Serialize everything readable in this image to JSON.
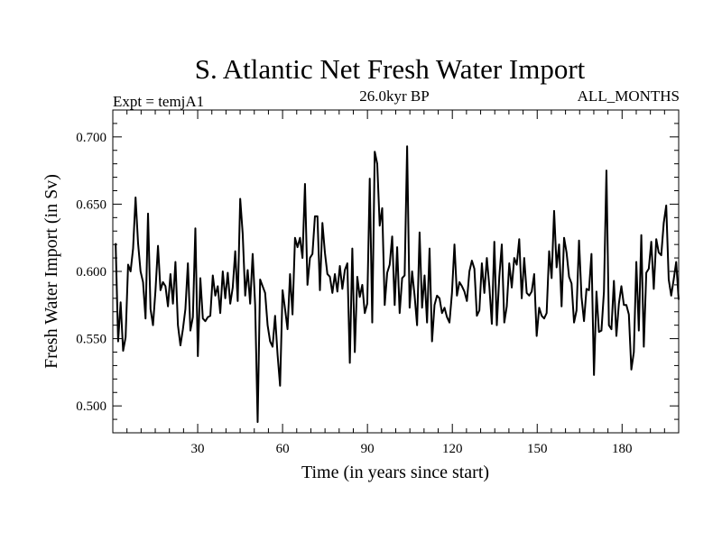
{
  "chart_data": {
    "type": "line",
    "title": "S. Atlantic Net Fresh Water Import",
    "subtitle_left": "Expt = temjA1",
    "subtitle_center": "26.0kyr BP",
    "subtitle_right": "ALL_MONTHS",
    "xlabel": "Time (in years since start)",
    "ylabel": "Fresh Water Import (in Sv)",
    "xlim": [
      0,
      200
    ],
    "ylim": [
      0.48,
      0.72
    ],
    "xticks": [
      30,
      60,
      90,
      120,
      150,
      180
    ],
    "yticks": [
      0.5,
      0.55,
      0.6,
      0.65,
      0.7
    ],
    "ytick_labels": [
      "0.500",
      "0.550",
      "0.600",
      "0.650",
      "0.700"
    ],
    "x_start": 1,
    "series": [
      {
        "name": "Fresh Water Import",
        "color": "#000000",
        "values": [
          0.621,
          0.548,
          0.577,
          0.541,
          0.551,
          0.605,
          0.6,
          0.617,
          0.655,
          0.621,
          0.6,
          0.592,
          0.565,
          0.643,
          0.572,
          0.56,
          0.586,
          0.619,
          0.586,
          0.592,
          0.589,
          0.574,
          0.598,
          0.576,
          0.607,
          0.56,
          0.545,
          0.557,
          0.572,
          0.606,
          0.556,
          0.566,
          0.632,
          0.537,
          0.595,
          0.565,
          0.563,
          0.566,
          0.567,
          0.597,
          0.582,
          0.589,
          0.569,
          0.6,
          0.58,
          0.599,
          0.576,
          0.588,
          0.615,
          0.578,
          0.654,
          0.628,
          0.582,
          0.601,
          0.576,
          0.613,
          0.575,
          0.488,
          0.594,
          0.589,
          0.584,
          0.56,
          0.548,
          0.544,
          0.567,
          0.538,
          0.515,
          0.586,
          0.572,
          0.557,
          0.598,
          0.568,
          0.625,
          0.618,
          0.625,
          0.61,
          0.665,
          0.59,
          0.61,
          0.613,
          0.641,
          0.641,
          0.586,
          0.636,
          0.614,
          0.598,
          0.596,
          0.584,
          0.598,
          0.585,
          0.604,
          0.587,
          0.601,
          0.606,
          0.532,
          0.617,
          0.54,
          0.596,
          0.581,
          0.59,
          0.569,
          0.576,
          0.669,
          0.562,
          0.689,
          0.68,
          0.634,
          0.647,
          0.575,
          0.599,
          0.605,
          0.626,
          0.575,
          0.618,
          0.569,
          0.595,
          0.597,
          0.693,
          0.573,
          0.6,
          0.582,
          0.56,
          0.629,
          0.573,
          0.597,
          0.562,
          0.617,
          0.548,
          0.575,
          0.582,
          0.58,
          0.569,
          0.573,
          0.566,
          0.562,
          0.584,
          0.62,
          0.582,
          0.592,
          0.589,
          0.585,
          0.578,
          0.6,
          0.608,
          0.602,
          0.567,
          0.571,
          0.606,
          0.584,
          0.61,
          0.589,
          0.561,
          0.622,
          0.56,
          0.596,
          0.62,
          0.562,
          0.574,
          0.606,
          0.588,
          0.61,
          0.605,
          0.624,
          0.58,
          0.61,
          0.584,
          0.582,
          0.585,
          0.598,
          0.552,
          0.573,
          0.567,
          0.565,
          0.569,
          0.615,
          0.595,
          0.645,
          0.603,
          0.62,
          0.574,
          0.625,
          0.614,
          0.596,
          0.591,
          0.562,
          0.571,
          0.623,
          0.581,
          0.563,
          0.587,
          0.586,
          0.613,
          0.523,
          0.585,
          0.555,
          0.556,
          0.585,
          0.675,
          0.56,
          0.557,
          0.593,
          0.552,
          0.576,
          0.589,
          0.575,
          0.575,
          0.568,
          0.527,
          0.54,
          0.607,
          0.556,
          0.627,
          0.544,
          0.599,
          0.602,
          0.622,
          0.587,
          0.624,
          0.614,
          0.612,
          0.636,
          0.649,
          0.594,
          0.582,
          0.594,
          0.607,
          0.579
        ]
      }
    ]
  }
}
